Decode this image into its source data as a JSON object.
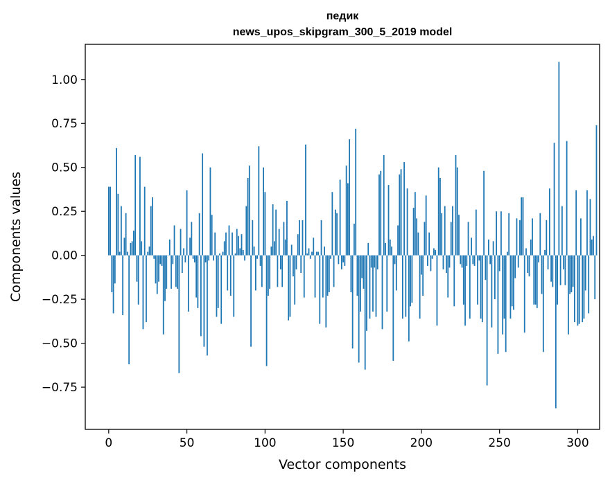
{
  "chart_data": {
    "type": "bar",
    "title": "педик",
    "subtitle": "news_upos_skipgram_300_5_2019 model",
    "xlabel": "Vector components",
    "ylabel": "Components values",
    "xlim": [
      -15,
      314
    ],
    "ylim": [
      -0.99,
      1.2
    ],
    "xticks": [
      0,
      50,
      100,
      150,
      200,
      250,
      300
    ],
    "yticks": [
      -0.75,
      -0.5,
      -0.25,
      0.0,
      0.25,
      0.5,
      0.75,
      1.0
    ],
    "xtick_labels": [
      "0",
      "50",
      "100",
      "150",
      "200",
      "250",
      "300"
    ],
    "ytick_labels": [
      "−0.75",
      "−0.50",
      "−0.25",
      "0.00",
      "0.25",
      "0.50",
      "0.75",
      "1.00"
    ],
    "grid": false,
    "color": "#1f77b4",
    "values": [
      0.39,
      0.39,
      -0.21,
      -0.33,
      -0.16,
      0.61,
      0.35,
      0.02,
      0.28,
      -0.34,
      0.1,
      0.24,
      0.02,
      -0.62,
      0.07,
      0.08,
      0.14,
      0.57,
      -0.15,
      -0.28,
      0.56,
      0.08,
      -0.42,
      0.39,
      -0.38,
      0.02,
      0.05,
      0.28,
      0.33,
      -0.02,
      -0.16,
      -0.22,
      -0.15,
      -0.05,
      -0.06,
      -0.45,
      -0.26,
      -0.19,
      0.0,
      0.09,
      -0.19,
      -0.05,
      0.17,
      -0.18,
      -0.19,
      -0.67,
      0.15,
      -0.1,
      0.04,
      -0.04,
      0.37,
      -0.32,
      0.1,
      0.19,
      -0.02,
      -0.04,
      -0.24,
      -0.3,
      0.24,
      -0.46,
      0.58,
      -0.52,
      -0.04,
      -0.57,
      -0.03,
      0.5,
      0.23,
      -0.03,
      0.13,
      -0.35,
      -0.3,
      0.01,
      -0.39,
      0.02,
      0.08,
      0.13,
      -0.2,
      0.17,
      -0.23,
      0.13,
      -0.35,
      0.01,
      0.15,
      0.11,
      0.04,
      0.12,
      0.03,
      -0.03,
      0.28,
      0.44,
      0.51,
      -0.52,
      0.2,
      0.05,
      -0.2,
      -0.02,
      0.62,
      -0.06,
      -0.18,
      0.5,
      0.36,
      -0.63,
      -0.23,
      -0.19,
      0.05,
      0.29,
      0.08,
      0.26,
      -0.18,
      0.15,
      -0.08,
      -0.18,
      0.19,
      0.09,
      0.31,
      -0.37,
      -0.35,
      0.06,
      -0.12,
      -0.28,
      -0.08,
      0.12,
      0.2,
      -0.1,
      0.2,
      -0.24,
      0.63,
      0.01,
      0.04,
      -0.02,
      0.02,
      0.1,
      -0.24,
      0.02,
      0.02,
      -0.39,
      0.2,
      -0.24,
      0.05,
      -0.41,
      -0.23,
      -0.21,
      -0.02,
      0.36,
      -0.18,
      0.26,
      0.24,
      -0.05,
      0.43,
      -0.08,
      -0.04,
      -0.06,
      0.51,
      0.41,
      0.66,
      -0.21,
      -0.53,
      0.18,
      0.72,
      -0.23,
      -0.61,
      -0.32,
      -0.13,
      -0.19,
      -0.65,
      -0.43,
      0.07,
      -0.36,
      -0.07,
      -0.32,
      -0.07,
      -0.35,
      -0.08,
      0.46,
      0.48,
      -0.42,
      0.57,
      0.07,
      -0.32,
      0.4,
      0.09,
      0.05,
      -0.6,
      -0.05,
      -0.2,
      0.17,
      0.46,
      0.49,
      -0.36,
      0.53,
      -0.35,
      0.38,
      -0.49,
      -0.29,
      -0.27,
      0.27,
      0.36,
      0.21,
      0.13,
      -0.36,
      -0.11,
      -0.23,
      0.19,
      0.34,
      -0.06,
      0.13,
      -0.09,
      -0.02,
      0.04,
      0.03,
      -0.4,
      0.5,
      0.44,
      0.24,
      -0.08,
      0.28,
      -0.1,
      -0.24,
      -0.07,
      0.19,
      0.28,
      -0.29,
      0.57,
      0.5,
      0.23,
      -0.05,
      -0.07,
      -0.28,
      -0.4,
      -0.06,
      0.19,
      -0.36,
      0.1,
      -0.05,
      -0.06,
      0.26,
      -0.28,
      -0.03,
      -0.36,
      -0.38,
      0.48,
      -0.14,
      -0.74,
      0.09,
      -0.05,
      -0.41,
      0.08,
      -0.25,
      0.25,
      -0.56,
      -0.09,
      0.25,
      -0.45,
      -0.36,
      -0.55,
      0.02,
      0.24,
      -0.36,
      -0.29,
      -0.31,
      -0.13,
      0.21,
      -0.07,
      0.2,
      0.33,
      0.33,
      -0.44,
      0.04,
      -0.1,
      -0.12,
      0.09,
      0.21,
      -0.28,
      -0.28,
      -0.3,
      -0.04,
      0.24,
      -0.22,
      -0.55,
      0.03,
      0.2,
      -0.08,
      0.38,
      -0.15,
      -0.18,
      0.64,
      -0.87,
      -0.28,
      1.1,
      -0.17,
      0.28,
      -0.08,
      -0.17,
      0.65,
      -0.45,
      -0.22,
      -0.21,
      -0.18,
      -0.38,
      0.37,
      -0.4,
      -0.39,
      0.21,
      -0.38,
      -0.36,
      -0.2,
      0.37,
      -0.33,
      0.32,
      0.09,
      0.11,
      -0.25,
      0.74
    ]
  }
}
